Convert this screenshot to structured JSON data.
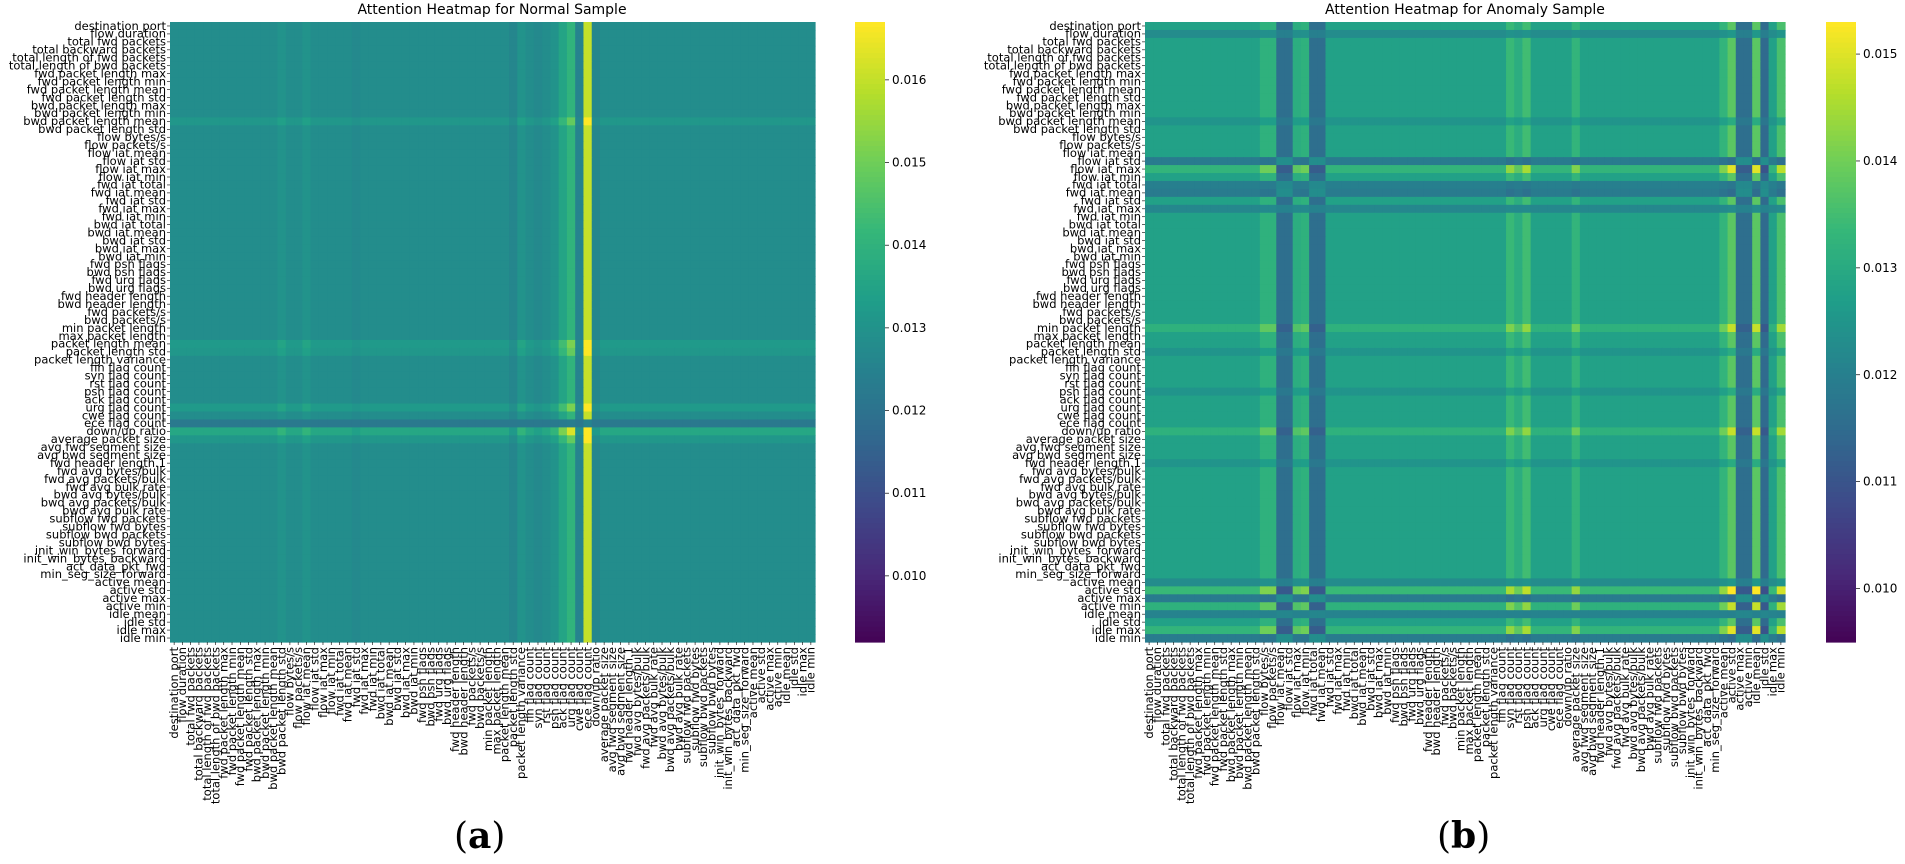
{
  "features": [
    "destination port",
    "flow duration",
    "total fwd packets",
    "total backward packets",
    "total length of fwd packets",
    "total length of bwd packets",
    "fwd packet length max",
    "fwd packet length min",
    "fwd packet length mean",
    "fwd packet length std",
    "bwd packet length max",
    "bwd packet length min",
    "bwd packet length mean",
    "bwd packet length std",
    "flow bytes/s",
    "flow packets/s",
    "flow iat mean",
    "flow iat std",
    "flow iat max",
    "flow iat min",
    "fwd iat total",
    "fwd iat mean",
    "fwd iat std",
    "fwd iat max",
    "fwd iat min",
    "bwd iat total",
    "bwd iat mean",
    "bwd iat std",
    "bwd iat max",
    "bwd iat min",
    "fwd psh flags",
    "bwd psh flags",
    "fwd urg flags",
    "bwd urg flags",
    "fwd header length",
    "bwd header length",
    "fwd packets/s",
    "bwd packets/s",
    "min packet length",
    "max packet length",
    "packet length mean",
    "packet length std",
    "packet length variance",
    "fin flag count",
    "syn flag count",
    "rst flag count",
    "psh flag count",
    "ack flag count",
    "urg flag count",
    "cwe flag count",
    "ece flag count",
    "down/up ratio",
    "average packet size",
    "avg fwd segment size",
    "avg bwd segment size",
    "fwd header length.1",
    "fwd avg bytes/bulk",
    "fwd avg packets/bulk",
    "fwd avg bulk rate",
    "bwd avg bytes/bulk",
    "bwd avg packets/bulk",
    "bwd avg bulk rate",
    "subflow fwd packets",
    "subflow fwd bytes",
    "subflow bwd packets",
    "subflow bwd bytes",
    "init_win_bytes_forward",
    "init_win_bytes_backward",
    "act_data_pkt_fwd",
    "min_seg_size_forward",
    "active mean",
    "active std",
    "active max",
    "active min",
    "idle mean",
    "idle std",
    "idle max",
    "idle min"
  ],
  "chart_data": [
    {
      "type": "heatmap",
      "title": "Attention Heatmap for Normal Sample",
      "panel_label": "a",
      "colormap": "viridis",
      "vmin": 0.0092,
      "vmax": 0.0167,
      "colorbar_ticks": [
        0.01,
        0.011,
        0.012,
        0.013,
        0.014,
        0.015,
        0.016
      ],
      "base": 0.01285,
      "col_effects": [
        {
          "feature": "bwd packet length std",
          "delta": 0.0002
        },
        {
          "feature": "flow iat mean",
          "delta": 0.0002
        },
        {
          "feature": "fwd iat std",
          "delta": -0.0001
        },
        {
          "feature": "packet length std",
          "delta": -0.0002
        },
        {
          "feature": "packet length variance",
          "delta": 0.0002
        },
        {
          "feature": "syn flag count",
          "delta": -0.0001
        },
        {
          "feature": "psh flag count",
          "delta": 0.0002
        },
        {
          "feature": "ack flag count",
          "delta": 0.0007
        },
        {
          "feature": "urg flag count",
          "delta": 0.0012
        },
        {
          "feature": "cwe flag count",
          "delta": -0.0003
        },
        {
          "feature": "ece flag count",
          "delta": 0.0032
        },
        {
          "feature": "down/up ratio",
          "delta": -0.0002
        }
      ],
      "row_effects": [
        {
          "feature": "bwd packet length mean",
          "delta": 0.0003
        },
        {
          "feature": "packet length mean",
          "delta": 0.0004
        },
        {
          "feature": "packet length std",
          "delta": 0.0003
        },
        {
          "feature": "urg flag count",
          "delta": 0.0004
        },
        {
          "feature": "ece flag count",
          "delta": -0.0006
        },
        {
          "feature": "down/up ratio",
          "delta": 0.0008
        },
        {
          "feature": "average packet size",
          "delta": 0.0003
        }
      ]
    },
    {
      "type": "heatmap",
      "title": "Attention Heatmap for Anomaly Sample",
      "panel_label": "b",
      "colormap": "viridis",
      "vmin": 0.0095,
      "vmax": 0.0153,
      "colorbar_ticks": [
        0.01,
        0.011,
        0.012,
        0.013,
        0.014,
        0.015
      ],
      "base": 0.0128,
      "col_effects": [
        {
          "feature": "flow bytes/s",
          "delta": 0.0004
        },
        {
          "feature": "flow packets/s",
          "delta": 0.0004
        },
        {
          "feature": "flow iat mean",
          "delta": -0.0012
        },
        {
          "feature": "flow iat std",
          "delta": -0.0012
        },
        {
          "feature": "flow iat max",
          "delta": 0.0003
        },
        {
          "feature": "flow iat min",
          "delta": 0.0004
        },
        {
          "feature": "fwd iat total",
          "delta": -0.0012
        },
        {
          "feature": "fwd iat mean",
          "delta": -0.0012
        },
        {
          "feature": "syn flag count",
          "delta": 0.0006
        },
        {
          "feature": "rst flag count",
          "delta": 0.0003
        },
        {
          "feature": "psh flag count",
          "delta": 0.0007
        },
        {
          "feature": "average packet size",
          "delta": 0.0005
        },
        {
          "feature": "active mean",
          "delta": 0.0005
        },
        {
          "feature": "active std",
          "delta": 0.001
        },
        {
          "feature": "active max",
          "delta": -0.0012
        },
        {
          "feature": "active min",
          "delta": -0.0012
        },
        {
          "feature": "idle mean",
          "delta": 0.001
        },
        {
          "feature": "idle std",
          "delta": -0.0013
        },
        {
          "feature": "idle min",
          "delta": 0.0008
        }
      ],
      "row_effects": [
        {
          "feature": "flow duration",
          "delta": -0.0005
        },
        {
          "feature": "bwd packet length mean",
          "delta": -0.0003
        },
        {
          "feature": "flow iat std",
          "delta": -0.0009
        },
        {
          "feature": "flow iat max",
          "delta": 0.0005
        },
        {
          "feature": "fwd iat total",
          "delta": -0.0008
        },
        {
          "feature": "fwd iat mean",
          "delta": -0.0009
        },
        {
          "feature": "fwd iat max",
          "delta": -0.0006
        },
        {
          "feature": "min packet length",
          "delta": 0.0004
        },
        {
          "feature": "packet length std",
          "delta": -0.0003
        },
        {
          "feature": "psh flag count",
          "delta": -0.0003
        },
        {
          "feature": "down/up ratio",
          "delta": 0.0004
        },
        {
          "feature": "fwd header length.1",
          "delta": -0.0003
        },
        {
          "feature": "active mean",
          "delta": -0.0005
        },
        {
          "feature": "active std",
          "delta": 0.0006
        },
        {
          "feature": "active max",
          "delta": -0.0009
        },
        {
          "feature": "active min",
          "delta": 0.0004
        },
        {
          "feature": "idle mean",
          "delta": -0.0007
        },
        {
          "feature": "idle max",
          "delta": 0.0005
        },
        {
          "feature": "idle min",
          "delta": -0.0009
        }
      ]
    }
  ]
}
